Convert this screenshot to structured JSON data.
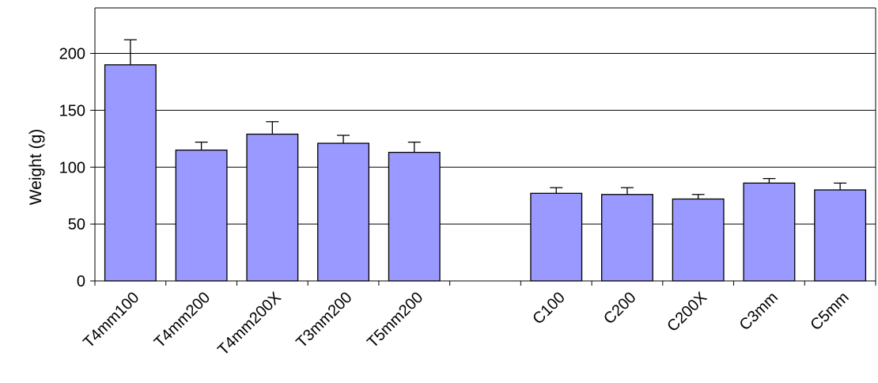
{
  "chart_data": {
    "type": "bar",
    "title": "",
    "xlabel": "",
    "ylabel": "Weight (g)",
    "ylim": [
      0,
      240
    ],
    "yticks": [
      0,
      50,
      100,
      150,
      200
    ],
    "grid": true,
    "legend": "none",
    "categories": [
      "T4mm100",
      "T4mm200",
      "T4mm200X",
      "T3mm200",
      "T5mm200",
      "",
      "C100",
      "C200",
      "C200X",
      "C3mm",
      "C5mm"
    ],
    "values": [
      190,
      115,
      129,
      121,
      113,
      null,
      77,
      76,
      72,
      86,
      80
    ],
    "errors": [
      22,
      7,
      11,
      7,
      9,
      null,
      5,
      6,
      4,
      4,
      6
    ],
    "bar_color": "#9999ff",
    "bar_edge_color": "#000000"
  }
}
